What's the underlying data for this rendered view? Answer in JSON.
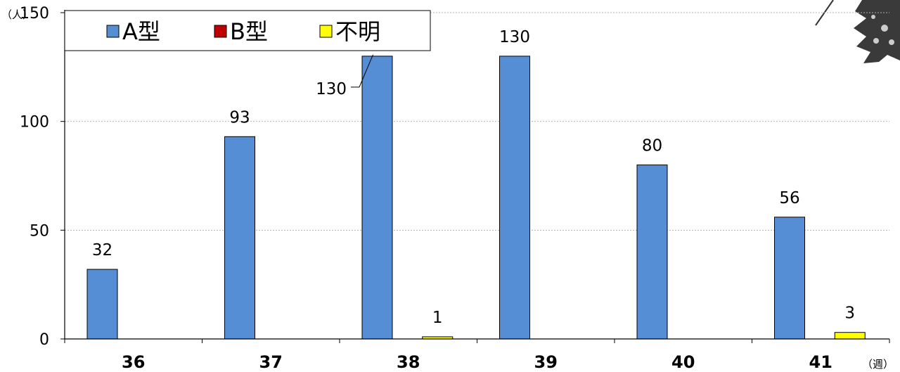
{
  "chart_data": {
    "type": "bar",
    "categories": [
      "36",
      "37",
      "38",
      "39",
      "40",
      "41"
    ],
    "series": [
      {
        "name": "A型",
        "color": "#558ed5",
        "values": [
          32,
          93,
          130,
          130,
          80,
          56
        ]
      },
      {
        "name": "B型",
        "color": "#c00000",
        "values": [
          0,
          0,
          0,
          0,
          0,
          0
        ]
      },
      {
        "name": "不明",
        "color": "#ffff00",
        "values": [
          0,
          0,
          1,
          0,
          0,
          3
        ]
      }
    ],
    "data_labels": [
      {
        "series": 0,
        "category": 0,
        "text": "32"
      },
      {
        "series": 0,
        "category": 1,
        "text": "93"
      },
      {
        "series": 0,
        "category": 2,
        "text": "130"
      },
      {
        "series": 2,
        "category": 2,
        "text": "1"
      },
      {
        "series": 0,
        "category": 3,
        "text": "130"
      },
      {
        "series": 0,
        "category": 4,
        "text": "80"
      },
      {
        "series": 0,
        "category": 5,
        "text": "56"
      },
      {
        "series": 2,
        "category": 5,
        "text": "3"
      }
    ],
    "ylim": [
      0,
      150
    ],
    "yticks": [
      0,
      50,
      100,
      150
    ],
    "y_unit": "（人）",
    "x_unit": "（週）",
    "grid": true,
    "legend_position": "top-left"
  }
}
